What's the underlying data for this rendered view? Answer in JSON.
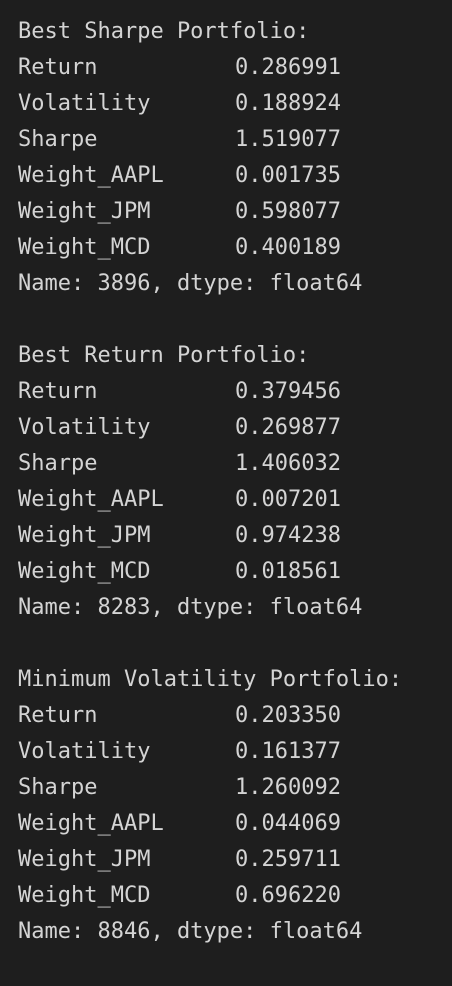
{
  "blocks": [
    {
      "title": "Best Sharpe Portfolio:",
      "rows": [
        {
          "key": "Return",
          "value": "0.286991"
        },
        {
          "key": "Volatility",
          "value": "0.188924"
        },
        {
          "key": "Sharpe",
          "value": "1.519077"
        },
        {
          "key": "Weight_AAPL",
          "value": "0.001735"
        },
        {
          "key": "Weight_JPM",
          "value": "0.598077"
        },
        {
          "key": "Weight_MCD",
          "value": "0.400189"
        }
      ],
      "footer": "Name: 3896, dtype: float64"
    },
    {
      "title": "Best Return Portfolio:",
      "rows": [
        {
          "key": "Return",
          "value": "0.379456"
        },
        {
          "key": "Volatility",
          "value": "0.269877"
        },
        {
          "key": "Sharpe",
          "value": "1.406032"
        },
        {
          "key": "Weight_AAPL",
          "value": "0.007201"
        },
        {
          "key": "Weight_JPM",
          "value": "0.974238"
        },
        {
          "key": "Weight_MCD",
          "value": "0.018561"
        }
      ],
      "footer": "Name: 8283, dtype: float64"
    },
    {
      "title": "Minimum Volatility Portfolio:",
      "rows": [
        {
          "key": "Return",
          "value": "0.203350"
        },
        {
          "key": "Volatility",
          "value": "0.161377"
        },
        {
          "key": "Sharpe",
          "value": "1.260092"
        },
        {
          "key": "Weight_AAPL",
          "value": "0.044069"
        },
        {
          "key": "Weight_JPM",
          "value": "0.259711"
        },
        {
          "key": "Weight_MCD",
          "value": "0.696220"
        }
      ],
      "footer": "Name: 8846, dtype: float64"
    }
  ],
  "colors": {
    "background": "#1e1e1e",
    "text": "#d4d4d4"
  }
}
